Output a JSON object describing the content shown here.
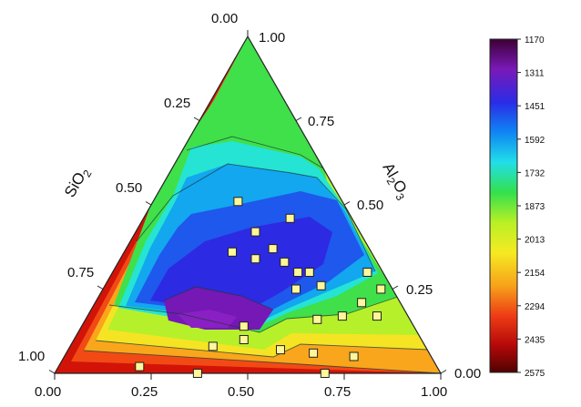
{
  "chart_data": {
    "type": "ternary-contour",
    "axes": {
      "left": {
        "label": "SiO",
        "subscript": "2",
        "ticks": [
          "0.00",
          "0.25",
          "0.50",
          "0.75",
          "1.00"
        ]
      },
      "right": {
        "label": "Al",
        "subscript": "2",
        "label2": "O",
        "subscript2": "3",
        "ticks": [
          "1.00",
          "0.75",
          "0.50",
          "0.25",
          "0.00"
        ]
      },
      "bottom": {
        "ticks": [
          "0.00",
          "0.25",
          "0.50",
          "0.75",
          "1.00"
        ]
      }
    },
    "colorbar": {
      "ticks": [
        "1170",
        "1311",
        "1451",
        "1592",
        "1732",
        "1873",
        "2013",
        "2154",
        "2294",
        "2435",
        "2575"
      ],
      "colors": [
        "#3c0034",
        "#7a19b8",
        "#2a2ce6",
        "#0f86f4",
        "#21dfe8",
        "#33e04d",
        "#b8f025",
        "#f5ea22",
        "#f7a21a",
        "#ee3c16",
        "#b40808",
        "#4f0202"
      ]
    },
    "points_bottom_left_right": [
      [
        0.28,
        0.36,
        0.36
      ],
      [
        0.35,
        0.31,
        0.34
      ],
      [
        0.22,
        0.27,
        0.51
      ],
      [
        0.31,
        0.27,
        0.42
      ],
      [
        0.38,
        0.25,
        0.37
      ],
      [
        0.43,
        0.24,
        0.33
      ],
      [
        0.51,
        0.19,
        0.3
      ],
      [
        0.48,
        0.22,
        0.3
      ],
      [
        0.38,
        0.16,
        0.46
      ],
      [
        0.56,
        0.18,
        0.26
      ],
      [
        0.5,
        0.25,
        0.25
      ],
      [
        0.66,
        0.04,
        0.3
      ],
      [
        0.72,
        0.03,
        0.25
      ],
      [
        0.69,
        0.1,
        0.21
      ],
      [
        0.75,
        0.08,
        0.17
      ],
      [
        0.44,
        0.46,
        0.1
      ],
      [
        0.64,
        0.3,
        0.06
      ],
      [
        0.7,
        0.3,
        0.0
      ],
      [
        0.42,
        0.44,
        0.14
      ],
      [
        0.55,
        0.38,
        0.07
      ],
      [
        0.66,
        0.17,
        0.17
      ],
      [
        0.6,
        0.24,
        0.16
      ],
      [
        0.37,
        0.55,
        0.08
      ],
      [
        0.21,
        0.77,
        0.02
      ],
      [
        0.37,
        0.63,
        0.0
      ],
      [
        0.75,
        0.2,
        0.05
      ]
    ]
  }
}
